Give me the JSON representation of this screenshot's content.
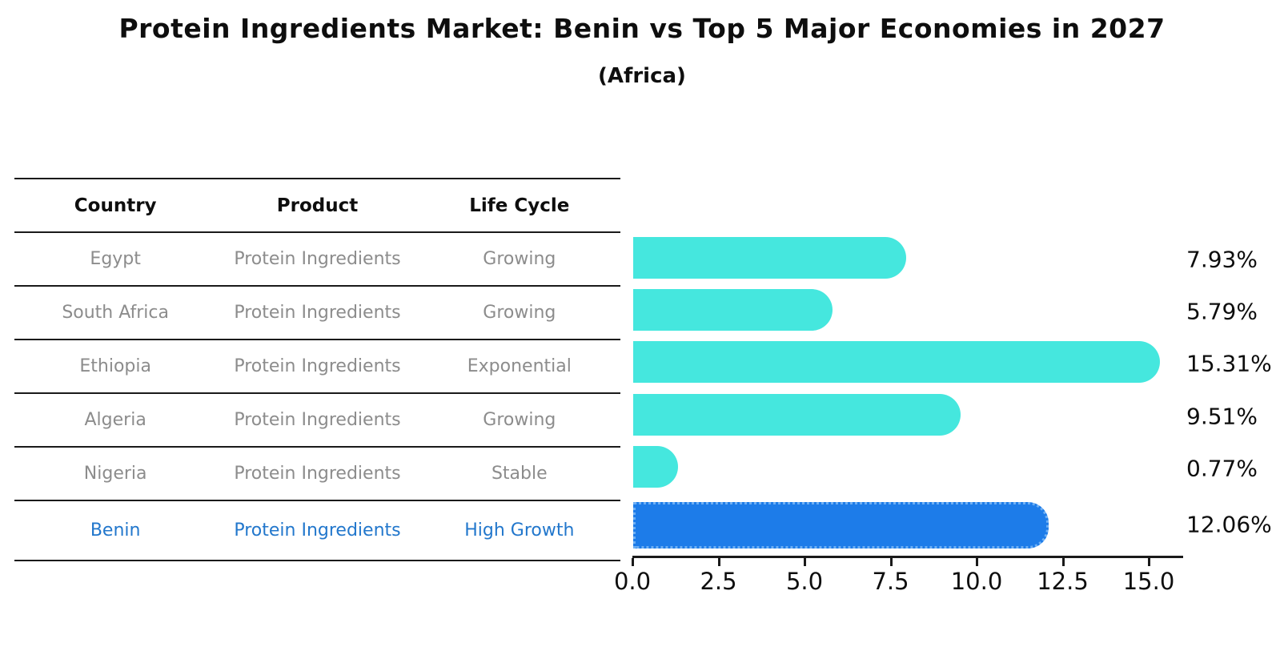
{
  "title": "Protein Ingredients Market: Benin vs Top 5 Major Economies in 2027",
  "subtitle": "(Africa)",
  "table": {
    "headers": [
      "Country",
      "Product",
      "Life Cycle"
    ],
    "rows": [
      {
        "country": "Egypt",
        "product": "Protein Ingredients",
        "life_cycle": "Growing",
        "highlight": false
      },
      {
        "country": "South Africa",
        "product": "Protein Ingredients",
        "life_cycle": "Growing",
        "highlight": false
      },
      {
        "country": "Ethiopia",
        "product": "Protein Ingredients",
        "life_cycle": "Exponential",
        "highlight": false
      },
      {
        "country": "Algeria",
        "product": "Protein Ingredients",
        "life_cycle": "Growing",
        "highlight": false
      },
      {
        "country": "Nigeria",
        "product": "Protein Ingredients",
        "life_cycle": "Stable",
        "highlight": false
      },
      {
        "country": "Benin",
        "product": "Protein Ingredients",
        "life_cycle": "High Growth",
        "highlight": true
      }
    ]
  },
  "chart_data": {
    "type": "bar",
    "orientation": "horizontal",
    "title": "Protein Ingredients Market: Benin vs Top 5 Major Economies in 2027",
    "subtitle": "(Africa)",
    "categories": [
      "Egypt",
      "South Africa",
      "Ethiopia",
      "Algeria",
      "Nigeria",
      "Benin"
    ],
    "values": [
      7.93,
      5.79,
      15.31,
      9.51,
      0.77,
      12.06
    ],
    "value_labels": [
      "7.93%",
      "5.79%",
      "15.31%",
      "9.51%",
      "0.77%",
      "12.06%"
    ],
    "x_ticks": [
      0.0,
      2.5,
      5.0,
      7.5,
      10.0,
      12.5,
      15.0
    ],
    "x_tick_labels": [
      "0.0",
      "2.5",
      "5.0",
      "7.5",
      "10.0",
      "12.5",
      "15.0"
    ],
    "xlim": [
      0,
      16
    ],
    "xlabel": "",
    "ylabel": "",
    "grid": false,
    "legend": false,
    "bar_color": "#45e7de",
    "highlight_bar_color": "#1d7ce9",
    "highlight_index": 5
  },
  "colors": {
    "bar_default": "#45e7de",
    "bar_highlight": "#1d7ce9",
    "highlight_text": "#2277cc",
    "row_text": "#8c8c8c",
    "axis_text": "#0e0e0e"
  }
}
